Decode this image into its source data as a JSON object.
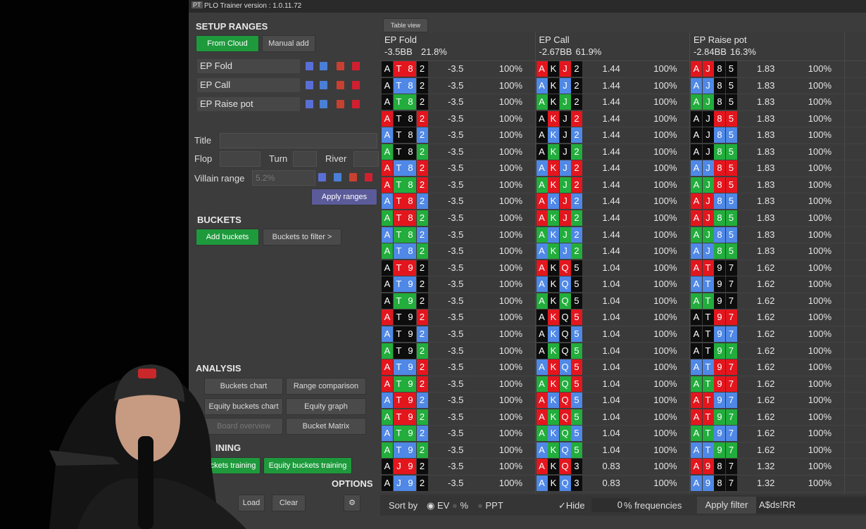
{
  "app_icon": "PT",
  "window_title": "PLO Trainer version : 1.0.11.72",
  "tab": "Table view",
  "sidebar": {
    "setup_title": "SETUP RANGES",
    "from_cloud": "From Cloud",
    "manual_add": "Manual add",
    "ranges": [
      "EP Fold",
      "EP Call",
      "EP Raise pot"
    ],
    "title_label": "Title",
    "flop_label": "Flop",
    "turn_label": "Turn",
    "river_label": "River",
    "villain_label": "Villain range",
    "villain_placeholder": "5.2%",
    "apply_ranges": "Apply ranges",
    "buckets_title": "BUCKETS",
    "add_buckets": "Add buckets",
    "buckets_to_filter": "Buckets to filter >",
    "analysis_title": "ANALYSIS",
    "analysis_buttons": [
      "Buckets chart",
      "Range comparison",
      "Equity buckets chart",
      "Equity graph",
      "Board overview",
      "Bucket Matrix"
    ],
    "training_title": "INING",
    "training_buttons": [
      "ckets training",
      "Equity buckets training"
    ],
    "options_title": "OPTIONS",
    "load": "Load",
    "clear": "Clear"
  },
  "table": {
    "suit_colors": {
      "k": "#0d0d0d",
      "r": "#e3161e",
      "b": "#4f88e6",
      "g": "#22ad3c"
    },
    "columns": [
      {
        "name": "EP Fold",
        "ev": "-3.5BB",
        "freq": "21.8%"
      },
      {
        "name": "EP Call",
        "ev": "-2.67BB",
        "freq": "61.9%"
      },
      {
        "name": "EP Raise pot",
        "ev": "-2.84BB",
        "freq": "16.3%"
      }
    ],
    "rows": [
      [
        {
          "c": [
            "A",
            "T",
            "8",
            "2"
          ],
          "s": "krrk",
          "ev": -3.5,
          "f": "100%"
        },
        {
          "c": [
            "A",
            "K",
            "J",
            "2"
          ],
          "s": "rkrk",
          "ev": 1.44,
          "f": "100%"
        },
        {
          "c": [
            "A",
            "J",
            "8",
            "5"
          ],
          "s": "rrkk",
          "ev": 1.83,
          "f": "100%"
        }
      ],
      [
        {
          "c": [
            "A",
            "T",
            "8",
            "2"
          ],
          "s": "kbbk",
          "ev": -3.5,
          "f": "100%"
        },
        {
          "c": [
            "A",
            "K",
            "J",
            "2"
          ],
          "s": "bkbk",
          "ev": 1.44,
          "f": "100%"
        },
        {
          "c": [
            "A",
            "J",
            "8",
            "5"
          ],
          "s": "bbkk",
          "ev": 1.83,
          "f": "100%"
        }
      ],
      [
        {
          "c": [
            "A",
            "T",
            "8",
            "2"
          ],
          "s": "kggk",
          "ev": -3.5,
          "f": "100%"
        },
        {
          "c": [
            "A",
            "K",
            "J",
            "2"
          ],
          "s": "gkgk",
          "ev": 1.44,
          "f": "100%"
        },
        {
          "c": [
            "A",
            "J",
            "8",
            "5"
          ],
          "s": "ggkk",
          "ev": 1.83,
          "f": "100%"
        }
      ],
      [
        {
          "c": [
            "A",
            "T",
            "8",
            "2"
          ],
          "s": "rkkr",
          "ev": -3.5,
          "f": "100%"
        },
        {
          "c": [
            "A",
            "K",
            "J",
            "2"
          ],
          "s": "krkr",
          "ev": 1.44,
          "f": "100%"
        },
        {
          "c": [
            "A",
            "J",
            "8",
            "5"
          ],
          "s": "kkrr",
          "ev": 1.83,
          "f": "100%"
        }
      ],
      [
        {
          "c": [
            "A",
            "T",
            "8",
            "2"
          ],
          "s": "bkkb",
          "ev": -3.5,
          "f": "100%"
        },
        {
          "c": [
            "A",
            "K",
            "J",
            "2"
          ],
          "s": "kbkb",
          "ev": 1.44,
          "f": "100%"
        },
        {
          "c": [
            "A",
            "J",
            "8",
            "5"
          ],
          "s": "kkbb",
          "ev": 1.83,
          "f": "100%"
        }
      ],
      [
        {
          "c": [
            "A",
            "T",
            "8",
            "2"
          ],
          "s": "gkkg",
          "ev": -3.5,
          "f": "100%"
        },
        {
          "c": [
            "A",
            "K",
            "J",
            "2"
          ],
          "s": "kgkg",
          "ev": 1.44,
          "f": "100%"
        },
        {
          "c": [
            "A",
            "J",
            "8",
            "5"
          ],
          "s": "kkgg",
          "ev": 1.83,
          "f": "100%"
        }
      ],
      [
        {
          "c": [
            "A",
            "T",
            "8",
            "2"
          ],
          "s": "rbbr",
          "ev": -3.5,
          "f": "100%"
        },
        {
          "c": [
            "A",
            "K",
            "J",
            "2"
          ],
          "s": "brbr",
          "ev": 1.44,
          "f": "100%"
        },
        {
          "c": [
            "A",
            "J",
            "8",
            "5"
          ],
          "s": "bbrr",
          "ev": 1.83,
          "f": "100%"
        }
      ],
      [
        {
          "c": [
            "A",
            "T",
            "8",
            "2"
          ],
          "s": "rggr",
          "ev": -3.5,
          "f": "100%"
        },
        {
          "c": [
            "A",
            "K",
            "J",
            "2"
          ],
          "s": "grgr",
          "ev": 1.44,
          "f": "100%"
        },
        {
          "c": [
            "A",
            "J",
            "8",
            "5"
          ],
          "s": "ggrr",
          "ev": 1.83,
          "f": "100%"
        }
      ],
      [
        {
          "c": [
            "A",
            "T",
            "8",
            "2"
          ],
          "s": "brrb",
          "ev": -3.5,
          "f": "100%"
        },
        {
          "c": [
            "A",
            "K",
            "J",
            "2"
          ],
          "s": "rbrb",
          "ev": 1.44,
          "f": "100%"
        },
        {
          "c": [
            "A",
            "J",
            "8",
            "5"
          ],
          "s": "rrbb",
          "ev": 1.83,
          "f": "100%"
        }
      ],
      [
        {
          "c": [
            "A",
            "T",
            "8",
            "2"
          ],
          "s": "grrg",
          "ev": -3.5,
          "f": "100%"
        },
        {
          "c": [
            "A",
            "K",
            "J",
            "2"
          ],
          "s": "rgrg",
          "ev": 1.44,
          "f": "100%"
        },
        {
          "c": [
            "A",
            "J",
            "8",
            "5"
          ],
          "s": "rrgg",
          "ev": 1.83,
          "f": "100%"
        }
      ],
      [
        {
          "c": [
            "A",
            "T",
            "8",
            "2"
          ],
          "s": "bggb",
          "ev": -3.5,
          "f": "100%"
        },
        {
          "c": [
            "A",
            "K",
            "J",
            "2"
          ],
          "s": "gbgb",
          "ev": 1.44,
          "f": "100%"
        },
        {
          "c": [
            "A",
            "J",
            "8",
            "5"
          ],
          "s": "ggbb",
          "ev": 1.83,
          "f": "100%"
        }
      ],
      [
        {
          "c": [
            "A",
            "T",
            "8",
            "2"
          ],
          "s": "gbbg",
          "ev": -3.5,
          "f": "100%"
        },
        {
          "c": [
            "A",
            "K",
            "J",
            "2"
          ],
          "s": "bgbg",
          "ev": 1.44,
          "f": "100%"
        },
        {
          "c": [
            "A",
            "J",
            "8",
            "5"
          ],
          "s": "bbgg",
          "ev": 1.83,
          "f": "100%"
        }
      ],
      [
        {
          "c": [
            "A",
            "T",
            "9",
            "2"
          ],
          "s": "krrk",
          "ev": -3.5,
          "f": "100%"
        },
        {
          "c": [
            "A",
            "K",
            "Q",
            "5"
          ],
          "s": "rkrk",
          "ev": 1.04,
          "f": "100%"
        },
        {
          "c": [
            "A",
            "T",
            "9",
            "7"
          ],
          "s": "rrkk",
          "ev": 1.62,
          "f": "100%"
        }
      ],
      [
        {
          "c": [
            "A",
            "T",
            "9",
            "2"
          ],
          "s": "kbbk",
          "ev": -3.5,
          "f": "100%"
        },
        {
          "c": [
            "A",
            "K",
            "Q",
            "5"
          ],
          "s": "bkbk",
          "ev": 1.04,
          "f": "100%"
        },
        {
          "c": [
            "A",
            "T",
            "9",
            "7"
          ],
          "s": "bbkk",
          "ev": 1.62,
          "f": "100%"
        }
      ],
      [
        {
          "c": [
            "A",
            "T",
            "9",
            "2"
          ],
          "s": "kggk",
          "ev": -3.5,
          "f": "100%"
        },
        {
          "c": [
            "A",
            "K",
            "Q",
            "5"
          ],
          "s": "gkgk",
          "ev": 1.04,
          "f": "100%"
        },
        {
          "c": [
            "A",
            "T",
            "9",
            "7"
          ],
          "s": "ggkk",
          "ev": 1.62,
          "f": "100%"
        }
      ],
      [
        {
          "c": [
            "A",
            "T",
            "9",
            "2"
          ],
          "s": "rkkr",
          "ev": -3.5,
          "f": "100%"
        },
        {
          "c": [
            "A",
            "K",
            "Q",
            "5"
          ],
          "s": "krkr",
          "ev": 1.04,
          "f": "100%"
        },
        {
          "c": [
            "A",
            "T",
            "9",
            "7"
          ],
          "s": "kkrr",
          "ev": 1.62,
          "f": "100%"
        }
      ],
      [
        {
          "c": [
            "A",
            "T",
            "9",
            "2"
          ],
          "s": "bkkb",
          "ev": -3.5,
          "f": "100%"
        },
        {
          "c": [
            "A",
            "K",
            "Q",
            "5"
          ],
          "s": "kbkb",
          "ev": 1.04,
          "f": "100%"
        },
        {
          "c": [
            "A",
            "T",
            "9",
            "7"
          ],
          "s": "kkbb",
          "ev": 1.62,
          "f": "100%"
        }
      ],
      [
        {
          "c": [
            "A",
            "T",
            "9",
            "2"
          ],
          "s": "gkkg",
          "ev": -3.5,
          "f": "100%"
        },
        {
          "c": [
            "A",
            "K",
            "Q",
            "5"
          ],
          "s": "kgkg",
          "ev": 1.04,
          "f": "100%"
        },
        {
          "c": [
            "A",
            "T",
            "9",
            "7"
          ],
          "s": "kkgg",
          "ev": 1.62,
          "f": "100%"
        }
      ],
      [
        {
          "c": [
            "A",
            "T",
            "9",
            "2"
          ],
          "s": "rbbr",
          "ev": -3.5,
          "f": "100%"
        },
        {
          "c": [
            "A",
            "K",
            "Q",
            "5"
          ],
          "s": "brbr",
          "ev": 1.04,
          "f": "100%"
        },
        {
          "c": [
            "A",
            "T",
            "9",
            "7"
          ],
          "s": "bbrr",
          "ev": 1.62,
          "f": "100%"
        }
      ],
      [
        {
          "c": [
            "A",
            "T",
            "9",
            "2"
          ],
          "s": "rggr",
          "ev": -3.5,
          "f": "100%"
        },
        {
          "c": [
            "A",
            "K",
            "Q",
            "5"
          ],
          "s": "grgr",
          "ev": 1.04,
          "f": "100%"
        },
        {
          "c": [
            "A",
            "T",
            "9",
            "7"
          ],
          "s": "ggrr",
          "ev": 1.62,
          "f": "100%"
        }
      ],
      [
        {
          "c": [
            "A",
            "T",
            "9",
            "2"
          ],
          "s": "brrb",
          "ev": -3.5,
          "f": "100%"
        },
        {
          "c": [
            "A",
            "K",
            "Q",
            "5"
          ],
          "s": "rbrb",
          "ev": 1.04,
          "f": "100%"
        },
        {
          "c": [
            "A",
            "T",
            "9",
            "7"
          ],
          "s": "rrbb",
          "ev": 1.62,
          "f": "100%"
        }
      ],
      [
        {
          "c": [
            "A",
            "T",
            "9",
            "2"
          ],
          "s": "grrg",
          "ev": -3.5,
          "f": "100%"
        },
        {
          "c": [
            "A",
            "K",
            "Q",
            "5"
          ],
          "s": "rgrg",
          "ev": 1.04,
          "f": "100%"
        },
        {
          "c": [
            "A",
            "T",
            "9",
            "7"
          ],
          "s": "rrgg",
          "ev": 1.62,
          "f": "100%"
        }
      ],
      [
        {
          "c": [
            "A",
            "T",
            "9",
            "2"
          ],
          "s": "bggb",
          "ev": -3.5,
          "f": "100%"
        },
        {
          "c": [
            "A",
            "K",
            "Q",
            "5"
          ],
          "s": "gbgb",
          "ev": 1.04,
          "f": "100%"
        },
        {
          "c": [
            "A",
            "T",
            "9",
            "7"
          ],
          "s": "ggbb",
          "ev": 1.62,
          "f": "100%"
        }
      ],
      [
        {
          "c": [
            "A",
            "T",
            "9",
            "2"
          ],
          "s": "gbbg",
          "ev": -3.5,
          "f": "100%"
        },
        {
          "c": [
            "A",
            "K",
            "Q",
            "5"
          ],
          "s": "bgbg",
          "ev": 1.04,
          "f": "100%"
        },
        {
          "c": [
            "A",
            "T",
            "9",
            "7"
          ],
          "s": "bbgg",
          "ev": 1.62,
          "f": "100%"
        }
      ],
      [
        {
          "c": [
            "A",
            "J",
            "9",
            "2"
          ],
          "s": "krrk",
          "ev": -3.5,
          "f": "100%"
        },
        {
          "c": [
            "A",
            "K",
            "Q",
            "3"
          ],
          "s": "rkrk",
          "ev": 0.83,
          "f": "100%"
        },
        {
          "c": [
            "A",
            "9",
            "8",
            "7"
          ],
          "s": "rrkk",
          "ev": 1.32,
          "f": "100%"
        }
      ],
      [
        {
          "c": [
            "A",
            "J",
            "9",
            "2"
          ],
          "s": "kbbk",
          "ev": -3.5,
          "f": "100%"
        },
        {
          "c": [
            "A",
            "K",
            "Q",
            "3"
          ],
          "s": "bkbk",
          "ev": 0.83,
          "f": "100%"
        },
        {
          "c": [
            "A",
            "9",
            "8",
            "7"
          ],
          "s": "bbkk",
          "ev": 1.32,
          "f": "100%"
        }
      ]
    ]
  },
  "bottom_bar": {
    "sort_by": "Sort by",
    "sort_options": [
      "EV",
      "%",
      "PPT"
    ],
    "hide": "Hide",
    "hide_value": 0,
    "frequencies": "% frequencies",
    "apply_filter": "Apply filter",
    "filter": "A$ds!RR"
  }
}
